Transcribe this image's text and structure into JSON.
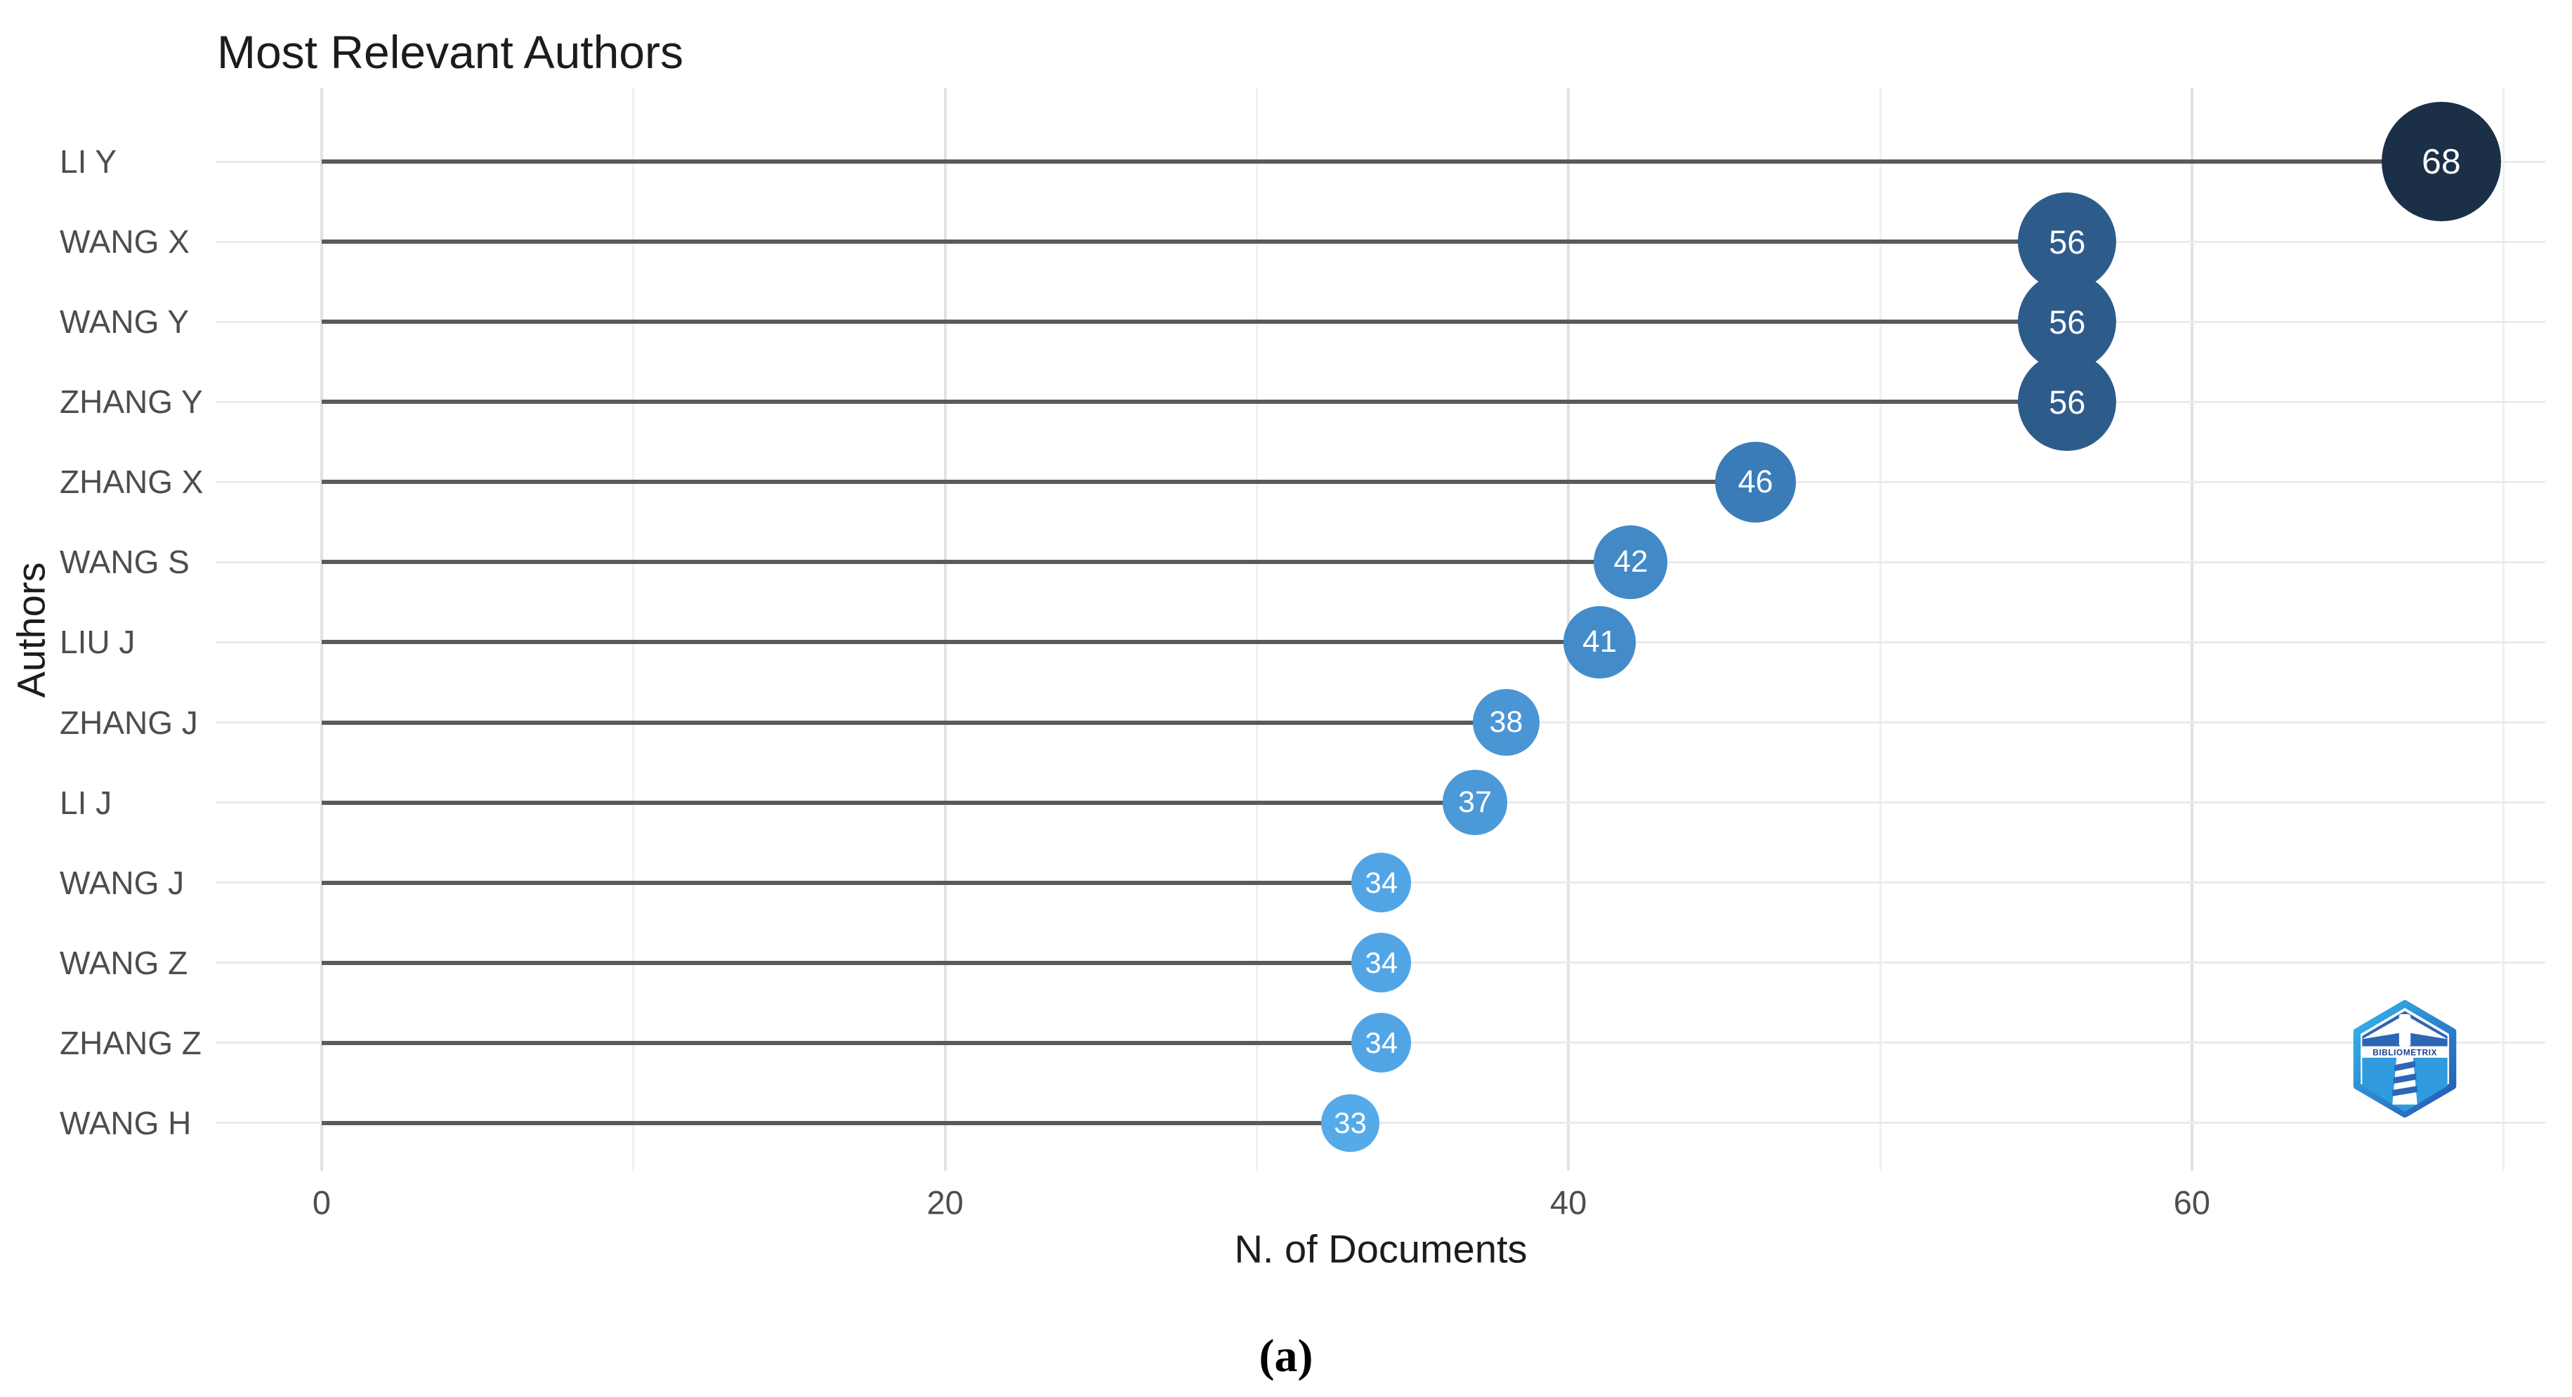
{
  "figure": {
    "caption": "(a)"
  },
  "chart_data": {
    "type": "bar",
    "variant": "horizontal_lollipop",
    "title": "Most Relevant Authors",
    "xlabel": "N. of Documents",
    "ylabel": "Authors",
    "categories": [
      "LI Y",
      "WANG X",
      "WANG Y",
      "ZHANG Y",
      "ZHANG X",
      "WANG S",
      "LIU J",
      "ZHANG J",
      "LI J",
      "WANG J",
      "WANG Z",
      "ZHANG Z",
      "WANG H"
    ],
    "values": [
      68,
      56,
      56,
      56,
      46,
      42,
      41,
      38,
      37,
      34,
      34,
      34,
      33
    ],
    "point_colors": [
      "#1B2F47",
      "#2D5C8B",
      "#2D5C8B",
      "#2D5C8B",
      "#3A7CB8",
      "#4289C6",
      "#448CC9",
      "#4A96D4",
      "#4C99D8",
      "#52A5E5",
      "#52A5E5",
      "#52A5E5",
      "#55AAEA"
    ],
    "x_ticks": [
      0,
      20,
      40,
      60
    ],
    "x_minor_ticks": [
      10,
      30,
      50,
      70
    ],
    "xlim": [
      0,
      68
    ],
    "grid": true,
    "legend": "none",
    "styles": {
      "background": "#ffffff",
      "stem_color": "#5a5a5a",
      "grid_major_color": "#e2e2e2",
      "grid_minor_color": "#f0f0f0",
      "row_grid_color": "#ebebeb",
      "axis_text_color": "#4d4d4d",
      "axis_title_color": "#1c1c1c",
      "title_color": "#1c1c1c",
      "bubble_text_color": "#ffffff"
    }
  },
  "logo": {
    "text": "BIBLIOMETRIX",
    "colors": {
      "outer_top": "#35b6e9",
      "outer_bottom": "#2458b3",
      "upper": "#2e66b5",
      "lower": "#2f9bdd",
      "text": "#1d3f8f"
    }
  }
}
